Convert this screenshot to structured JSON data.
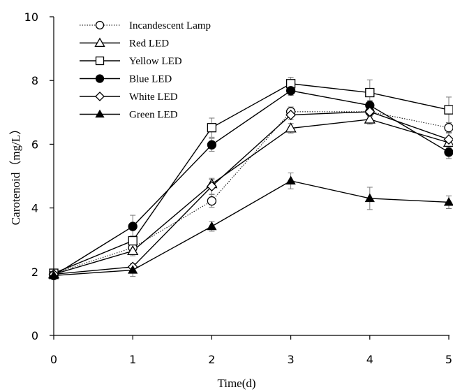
{
  "chart_data": {
    "type": "line",
    "xlabel": "Time(d)",
    "ylabel": "Carotenoid（mg/L）",
    "xlim": [
      0,
      5
    ],
    "ylim": [
      0,
      10
    ],
    "x_ticks": [
      "0",
      "1",
      "2",
      "3",
      "4",
      "5"
    ],
    "y_ticks": [
      "0",
      "2",
      "4",
      "6",
      "8",
      "10"
    ],
    "grid": false,
    "legend_position": "top-left",
    "x": [
      0,
      1,
      2,
      3,
      4,
      5
    ],
    "series": [
      {
        "name": "Incandescent Lamp",
        "marker": "open-circle",
        "line": "dotted",
        "color": "#000000",
        "values": [
          1.95,
          2.75,
          4.22,
          7.02,
          7.02,
          6.52
        ],
        "errors": [
          0.1,
          0.15,
          0.2,
          0.15,
          0.1,
          0.15
        ]
      },
      {
        "name": "Red LED",
        "marker": "open-triangle",
        "line": "solid",
        "color": "#000000",
        "values": [
          1.92,
          2.65,
          4.75,
          6.5,
          6.78,
          6.05
        ],
        "errors": [
          0.1,
          0.15,
          0.15,
          0.15,
          0.15,
          0.15
        ]
      },
      {
        "name": "Yellow LED",
        "marker": "open-square",
        "line": "solid",
        "color": "#000000",
        "values": [
          1.95,
          2.97,
          6.52,
          7.9,
          7.62,
          7.08
        ],
        "errors": [
          0.1,
          0.15,
          0.3,
          0.2,
          0.4,
          0.4
        ]
      },
      {
        "name": "Blue LED",
        "marker": "filled-circle",
        "line": "solid",
        "color": "#000000",
        "values": [
          1.88,
          3.42,
          5.98,
          7.68,
          7.22,
          5.75
        ],
        "errors": [
          0.1,
          0.35,
          0.2,
          0.15,
          0.15,
          0.2
        ]
      },
      {
        "name": "White LED",
        "marker": "open-diamond",
        "line": "solid",
        "color": "#000000",
        "values": [
          1.92,
          2.15,
          4.68,
          6.92,
          7.02,
          6.15
        ],
        "errors": [
          0.1,
          0.1,
          0.25,
          0.15,
          0.15,
          0.2
        ]
      },
      {
        "name": "Green LED",
        "marker": "filled-triangle",
        "line": "solid",
        "color": "#000000",
        "values": [
          1.88,
          2.05,
          3.42,
          4.85,
          4.3,
          4.18
        ],
        "errors": [
          0.1,
          0.2,
          0.15,
          0.25,
          0.35,
          0.2
        ]
      }
    ]
  }
}
